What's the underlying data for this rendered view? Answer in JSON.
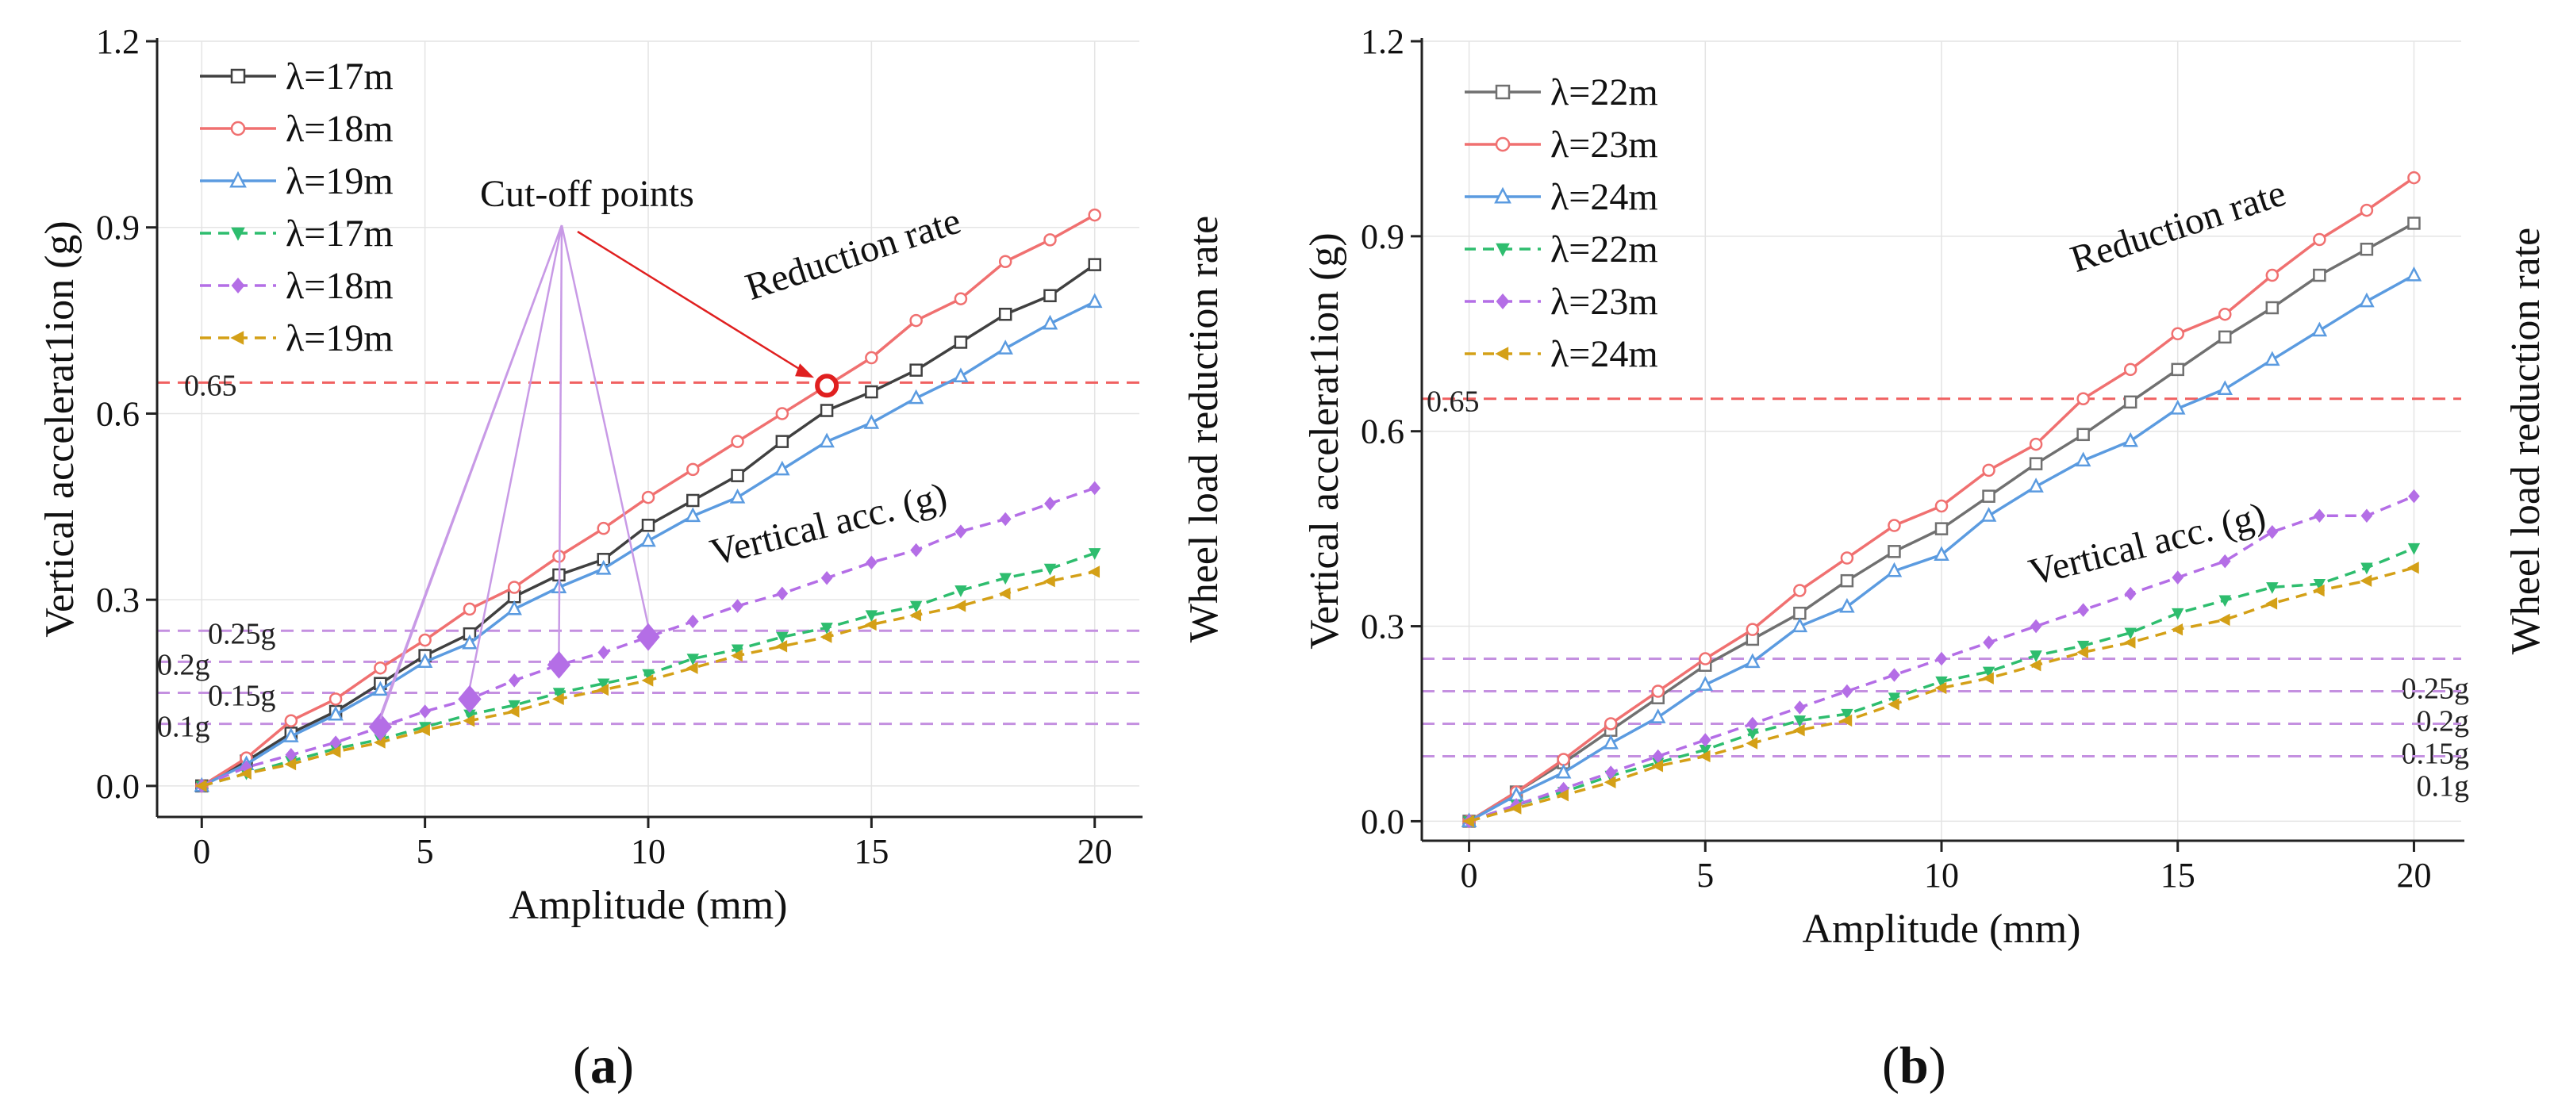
{
  "figure_labels": [
    {
      "paren_open": "(",
      "letter": "a",
      "paren_close": ")"
    },
    {
      "paren_open": "(",
      "letter": "b",
      "paren_close": ")"
    }
  ],
  "colors": {
    "black_series": "#404040",
    "red_series": "#f07070",
    "blue_series": "#5b9be0",
    "green_series": "#2ebd6e",
    "purple_series": "#b46ee6",
    "gold_series": "#d4a017",
    "threshold_red": "#f06060",
    "threshold_purple": "#c490e0",
    "annotation_line": "#c89ae6",
    "cutoff_red": "#e02020"
  },
  "chart_data": [
    {
      "id": "a",
      "type": "line",
      "x": [
        0,
        1,
        2,
        3,
        4,
        5,
        6,
        7,
        8,
        9,
        10,
        11,
        12,
        13,
        14,
        15,
        16,
        17,
        18,
        19,
        20
      ],
      "xlabel": "Amplitude (mm)",
      "ylabel": "Vertical accelerat1ion (g)",
      "ylabel_right": "Wheel load reduction rate",
      "xlim": [
        -1,
        21
      ],
      "ylim": [
        -0.05,
        1.2
      ],
      "xticks": [
        0,
        5,
        10,
        15,
        20
      ],
      "yticks": [
        0.0,
        0.3,
        0.6,
        0.9,
        1.2
      ],
      "ytick_labels": [
        "0.0",
        "0.3",
        "0.6",
        "0.9",
        "1.2"
      ],
      "series": [
        {
          "name": "λ=17m",
          "color": "#404040",
          "marker": "square-open",
          "dash": "solid",
          "values": [
            0,
            0.04,
            0.085,
            0.12,
            0.165,
            0.21,
            0.245,
            0.305,
            0.34,
            0.365,
            0.42,
            0.46,
            0.5,
            0.555,
            0.605,
            0.635,
            0.67,
            0.715,
            0.76,
            0.79,
            0.84
          ]
        },
        {
          "name": "λ=18m",
          "color": "#f07070",
          "marker": "circle-open",
          "dash": "solid",
          "values": [
            0,
            0.045,
            0.105,
            0.14,
            0.19,
            0.235,
            0.285,
            0.32,
            0.37,
            0.415,
            0.465,
            0.51,
            0.555,
            0.6,
            0.645,
            0.69,
            0.75,
            0.785,
            0.845,
            0.88,
            0.92
          ]
        },
        {
          "name": "λ=19m",
          "color": "#5b9be0",
          "marker": "triangle-open",
          "dash": "solid",
          "values": [
            0,
            0.035,
            0.08,
            0.115,
            0.155,
            0.2,
            0.23,
            0.285,
            0.32,
            0.35,
            0.395,
            0.435,
            0.465,
            0.51,
            0.555,
            0.585,
            0.625,
            0.66,
            0.705,
            0.745,
            0.78
          ]
        },
        {
          "name": "λ=17m",
          "color": "#2ebd6e",
          "marker": "triangle-down",
          "dash": "dashed",
          "values": [
            0,
            0.02,
            0.04,
            0.06,
            0.075,
            0.095,
            0.115,
            0.13,
            0.15,
            0.165,
            0.18,
            0.205,
            0.22,
            0.24,
            0.255,
            0.275,
            0.29,
            0.315,
            0.335,
            0.35,
            0.375
          ]
        },
        {
          "name": "λ=18m",
          "color": "#b46ee6",
          "marker": "diamond",
          "dash": "dashed",
          "values": [
            0,
            0.03,
            0.05,
            0.07,
            0.095,
            0.12,
            0.14,
            0.17,
            0.195,
            0.215,
            0.24,
            0.265,
            0.29,
            0.31,
            0.335,
            0.36,
            0.38,
            0.41,
            0.43,
            0.455,
            0.48
          ]
        },
        {
          "name": "λ=19m",
          "color": "#d4a017",
          "marker": "triangle-left",
          "dash": "dashed",
          "values": [
            0,
            0.02,
            0.035,
            0.055,
            0.07,
            0.09,
            0.105,
            0.12,
            0.14,
            0.155,
            0.17,
            0.19,
            0.21,
            0.225,
            0.24,
            0.26,
            0.275,
            0.29,
            0.31,
            0.33,
            0.345
          ]
        }
      ],
      "thresholds": [
        {
          "value": 0.65,
          "label": "0.65",
          "color": "#f06060"
        },
        {
          "value": 0.25,
          "label": "0.25g",
          "color": "#c490e0"
        },
        {
          "value": 0.2,
          "label": "0.2g",
          "color": "#c490e0"
        },
        {
          "value": 0.15,
          "label": "0.15g",
          "color": "#c490e0"
        },
        {
          "value": 0.1,
          "label": "0.1g",
          "color": "#c490e0"
        }
      ],
      "annotations": {
        "reduction_rate": "Reduction rate",
        "vertical_acc": "Vertical acc. (g)",
        "cutoff_title": "Cut-off points"
      },
      "cutoff_points": [
        {
          "x": 4,
          "y": 0.095
        },
        {
          "x": 6,
          "y": 0.14
        },
        {
          "x": 8,
          "y": 0.195
        },
        {
          "x": 10,
          "y": 0.24
        }
      ],
      "cutoff_red_point": {
        "x": 14,
        "y": 0.645
      }
    },
    {
      "id": "b",
      "type": "line",
      "x": [
        0,
        1,
        2,
        3,
        4,
        5,
        6,
        7,
        8,
        9,
        10,
        11,
        12,
        13,
        14,
        15,
        16,
        17,
        18,
        19,
        20
      ],
      "xlabel": "Amplitude (mm)",
      "ylabel": "Vertical accelerat1ion (g)",
      "ylabel_right": "Wheel load reduction rate",
      "xlim": [
        -1,
        21
      ],
      "ylim": [
        -0.03,
        1.2
      ],
      "xticks": [
        0,
        5,
        10,
        15,
        20
      ],
      "yticks": [
        0.0,
        0.3,
        0.6,
        0.9,
        1.2
      ],
      "ytick_labels": [
        "0.0",
        "0.3",
        "0.6",
        "0.9",
        "1.2"
      ],
      "series": [
        {
          "name": "λ=22m",
          "color": "#707070",
          "marker": "square-open",
          "dash": "solid",
          "values": [
            0,
            0.045,
            0.09,
            0.14,
            0.19,
            0.24,
            0.28,
            0.32,
            0.37,
            0.415,
            0.45,
            0.5,
            0.55,
            0.595,
            0.645,
            0.695,
            0.745,
            0.79,
            0.84,
            0.88,
            0.92
          ]
        },
        {
          "name": "λ=23m",
          "color": "#f07070",
          "marker": "circle-open",
          "dash": "solid",
          "values": [
            0,
            0.045,
            0.095,
            0.15,
            0.2,
            0.25,
            0.295,
            0.355,
            0.405,
            0.455,
            0.485,
            0.54,
            0.58,
            0.65,
            0.695,
            0.75,
            0.78,
            0.84,
            0.895,
            0.94,
            0.99
          ]
        },
        {
          "name": "λ=24m",
          "color": "#5b9be0",
          "marker": "triangle-open",
          "dash": "solid",
          "values": [
            0,
            0.04,
            0.075,
            0.12,
            0.16,
            0.21,
            0.245,
            0.3,
            0.33,
            0.385,
            0.41,
            0.47,
            0.515,
            0.555,
            0.585,
            0.635,
            0.665,
            0.71,
            0.755,
            0.8,
            0.84
          ]
        },
        {
          "name": "λ=22m",
          "color": "#2ebd6e",
          "marker": "triangle-down",
          "dash": "dashed",
          "values": [
            0,
            0.025,
            0.045,
            0.07,
            0.09,
            0.11,
            0.135,
            0.155,
            0.165,
            0.19,
            0.215,
            0.23,
            0.255,
            0.27,
            0.29,
            0.32,
            0.34,
            0.36,
            0.365,
            0.39,
            0.42
          ]
        },
        {
          "name": "λ=23m",
          "color": "#b46ee6",
          "marker": "diamond",
          "dash": "dashed",
          "values": [
            0,
            0.025,
            0.05,
            0.075,
            0.1,
            0.125,
            0.15,
            0.175,
            0.2,
            0.225,
            0.25,
            0.275,
            0.3,
            0.325,
            0.35,
            0.375,
            0.4,
            0.445,
            0.47,
            0.47,
            0.5
          ]
        },
        {
          "name": "λ=24m",
          "color": "#d4a017",
          "marker": "triangle-left",
          "dash": "dashed",
          "values": [
            0,
            0.02,
            0.04,
            0.06,
            0.085,
            0.1,
            0.12,
            0.14,
            0.155,
            0.18,
            0.205,
            0.22,
            0.24,
            0.26,
            0.275,
            0.295,
            0.31,
            0.335,
            0.355,
            0.37,
            0.39
          ]
        }
      ],
      "thresholds": [
        {
          "value": 0.65,
          "label": "0.65",
          "color": "#f06060"
        },
        {
          "value": 0.25,
          "label": "0.25g",
          "color": "#c490e0"
        },
        {
          "value": 0.2,
          "label": "0.2g",
          "color": "#c490e0"
        },
        {
          "value": 0.15,
          "label": "0.15g",
          "color": "#c490e0"
        },
        {
          "value": 0.1,
          "label": "0.1g",
          "color": "#c490e0"
        }
      ],
      "annotations": {
        "reduction_rate": "Reduction rate",
        "vertical_acc": "Vertical acc. (g)"
      }
    }
  ]
}
